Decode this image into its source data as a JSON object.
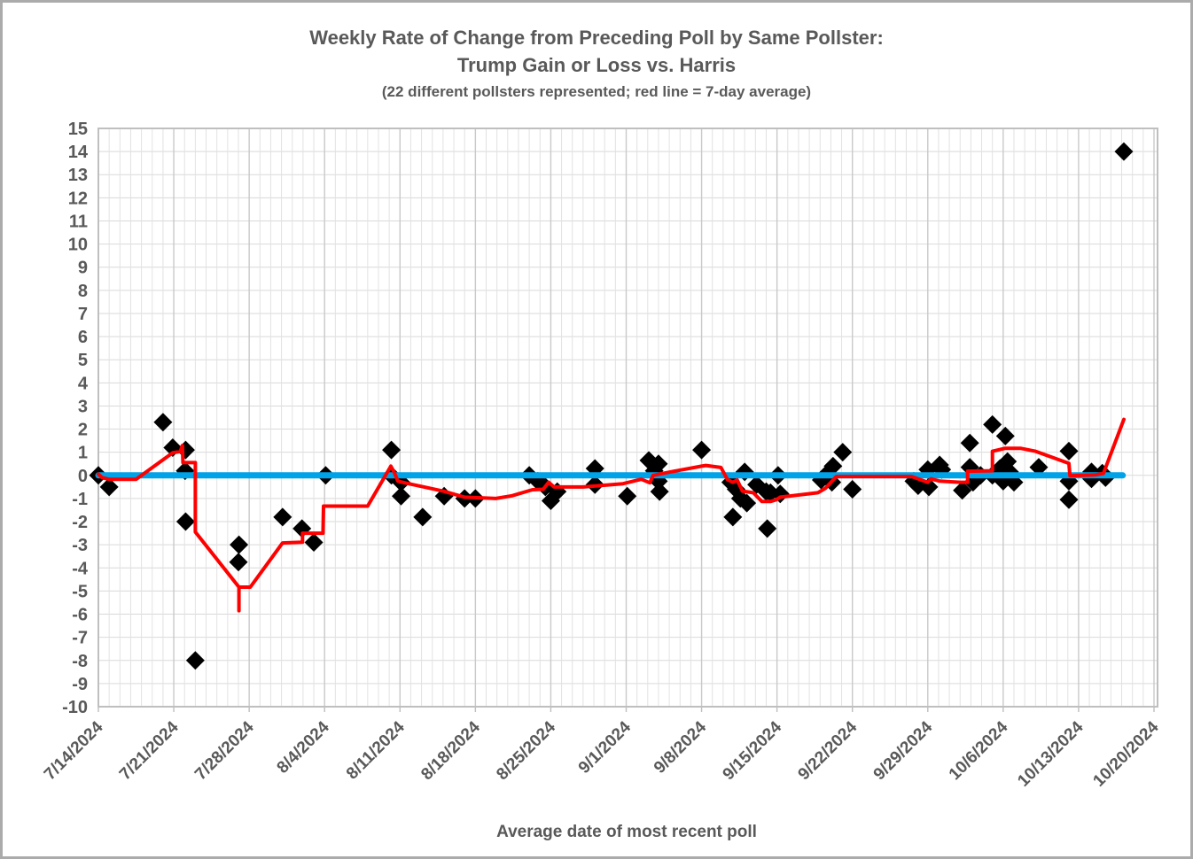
{
  "chart_data": {
    "type": "scatter",
    "title_line1": "Weekly Rate of Change from Preceding Poll by Same Pollster:",
    "title_line2": "Trump Gain or Loss vs. Harris",
    "subtitle": "(22 different pollsters represented; red line = 7-day average)",
    "xlabel": "Average date of most recent poll",
    "legend": {
      "red_line_meaning": "7-day average",
      "pollsters_represented": 22
    },
    "colors": {
      "scatter": "#000000",
      "zero_line": "#00a2e8",
      "avg_line": "#ff0000",
      "text": "#595959",
      "grid": "#d9d9d9",
      "grid_daily": "#e2e2e2",
      "grid_weekly": "#c9c9c9",
      "plot_border": "#bfbfbf"
    },
    "y_axis": {
      "min": -10,
      "max": 15,
      "step": 1,
      "tick_labels": [
        "15",
        "14",
        "13",
        "12",
        "11",
        "10",
        "9",
        "8",
        "7",
        "6",
        "5",
        "4",
        "3",
        "2",
        "1",
        "0",
        "-1",
        "-2",
        "-3",
        "-4",
        "-5",
        "-6",
        "-7",
        "-8",
        "-9",
        "-10"
      ]
    },
    "x_axis": {
      "tick_labels": [
        "7/14/2024",
        "7/21/2024",
        "7/28/2024",
        "8/4/2024",
        "8/11/2024",
        "8/18/2024",
        "8/25/2024",
        "9/1/2024",
        "9/8/2024",
        "9/15/2024",
        "9/22/2024",
        "9/29/2024",
        "10/6/2024",
        "10/13/2024",
        "10/20/2024"
      ],
      "days_per_tick": 7,
      "total_days_shown": 98.4
    },
    "zero_line_span_days": [
      0,
      95.1
    ],
    "scatter_points": [
      [
        0,
        0.0
      ],
      [
        1,
        -0.5
      ],
      [
        6,
        2.3
      ],
      [
        6.9,
        1.2
      ],
      [
        8.05,
        0.2
      ],
      [
        8.1,
        1.1
      ],
      [
        8.1,
        -2.0
      ],
      [
        9,
        -8.0
      ],
      [
        13.0,
        -3.75
      ],
      [
        13.05,
        -3.0
      ],
      [
        17.1,
        -1.8
      ],
      [
        18.9,
        -2.3
      ],
      [
        20,
        -2.9
      ],
      [
        21.1,
        0.0
      ],
      [
        27.2,
        1.1
      ],
      [
        27.2,
        0.0
      ],
      [
        28.1,
        -0.3
      ],
      [
        28.1,
        -0.9
      ],
      [
        30.1,
        -1.8
      ],
      [
        32.1,
        -0.9
      ],
      [
        34,
        -1.0
      ],
      [
        35,
        -1.0
      ],
      [
        40,
        0.0
      ],
      [
        40.8,
        -0.25
      ],
      [
        41.5,
        -0.5
      ],
      [
        42,
        -1.1
      ],
      [
        42.6,
        -0.7
      ],
      [
        46.1,
        0.3
      ],
      [
        46.1,
        -0.4
      ],
      [
        49.1,
        -0.9
      ],
      [
        51.1,
        0.65
      ],
      [
        51.6,
        0.2
      ],
      [
        52,
        0.5
      ],
      [
        52,
        -0.25
      ],
      [
        52.1,
        -0.7
      ],
      [
        56,
        1.1
      ],
      [
        58.7,
        -0.3
      ],
      [
        58.9,
        -1.8
      ],
      [
        59.2,
        -0.6
      ],
      [
        59.6,
        -1.0
      ],
      [
        60,
        0.15
      ],
      [
        60.2,
        -1.2
      ],
      [
        61.1,
        -0.4
      ],
      [
        62,
        -0.7
      ],
      [
        62.4,
        -0.75
      ],
      [
        62.1,
        -2.3
      ],
      [
        63.1,
        0.0
      ],
      [
        63.3,
        -0.8
      ],
      [
        67.1,
        -0.2
      ],
      [
        67.5,
        0.0
      ],
      [
        68.1,
        -0.3
      ],
      [
        68.2,
        0.4
      ],
      [
        69.1,
        1.0
      ],
      [
        70,
        -0.6
      ],
      [
        75.7,
        -0.25
      ],
      [
        76.1,
        -0.45
      ],
      [
        77,
        0.25
      ],
      [
        77.1,
        -0.5
      ],
      [
        78.1,
        0.45
      ],
      [
        78.3,
        0.25
      ],
      [
        80.2,
        -0.65
      ],
      [
        80.9,
        1.4
      ],
      [
        80.9,
        0.35
      ],
      [
        81.2,
        -0.3
      ],
      [
        81.9,
        0.0
      ],
      [
        83,
        2.2
      ],
      [
        83,
        0.0
      ],
      [
        83.7,
        0.3
      ],
      [
        84,
        -0.25
      ],
      [
        84.2,
        1.7
      ],
      [
        84.4,
        0.6
      ],
      [
        84.6,
        0.15
      ],
      [
        85,
        -0.3
      ],
      [
        87.3,
        0.35
      ],
      [
        90.1,
        1.05
      ],
      [
        90.1,
        -0.25
      ],
      [
        90.1,
        -1.05
      ],
      [
        92.2,
        0.15
      ],
      [
        92.2,
        -0.15
      ],
      [
        93.2,
        0.1
      ],
      [
        93.5,
        -0.1
      ],
      [
        95.2,
        14.0
      ]
    ],
    "avg_line_points": [
      [
        0,
        0.05
      ],
      [
        0.35,
        -0.1
      ],
      [
        1,
        -0.17
      ],
      [
        3.5,
        -0.17
      ],
      [
        6.9,
        0.98
      ],
      [
        7.6,
        1.03
      ],
      [
        7.8,
        1.29
      ],
      [
        7.85,
        0.55
      ],
      [
        9,
        0.55
      ],
      [
        9,
        -2.45
      ],
      [
        13.05,
        -4.83
      ],
      [
        13.05,
        -5.85
      ],
      [
        13.05,
        -4.83
      ],
      [
        14.1,
        -4.83
      ],
      [
        17.1,
        -2.92
      ],
      [
        18.95,
        -2.89
      ],
      [
        18.95,
        -2.5
      ],
      [
        20.85,
        -2.5
      ],
      [
        20.9,
        -1.33
      ],
      [
        25,
        -1.33
      ],
      [
        27.15,
        0.4
      ],
      [
        27.5,
        0.1
      ],
      [
        27.8,
        -0.25
      ],
      [
        28.8,
        -0.36
      ],
      [
        30.1,
        -0.49
      ],
      [
        32.1,
        -0.69
      ],
      [
        34,
        -0.94
      ],
      [
        36.9,
        -1.0
      ],
      [
        38.4,
        -0.88
      ],
      [
        40.3,
        -0.62
      ],
      [
        41.3,
        -0.6
      ],
      [
        41.8,
        -0.3
      ],
      [
        42.3,
        -0.5
      ],
      [
        45,
        -0.5
      ],
      [
        48.7,
        -0.36
      ],
      [
        50.4,
        -0.17
      ],
      [
        51.2,
        -0.32
      ],
      [
        51.5,
        0.0
      ],
      [
        53.1,
        0.15
      ],
      [
        56,
        0.4
      ],
      [
        56.4,
        0.43
      ],
      [
        57.8,
        0.34
      ],
      [
        58.4,
        -0.18
      ],
      [
        58.9,
        -0.3
      ],
      [
        59.3,
        -0.2
      ],
      [
        59.8,
        -0.68
      ],
      [
        60.8,
        -0.75
      ],
      [
        61.6,
        -1.13
      ],
      [
        62.4,
        -1.13
      ],
      [
        62.9,
        -1.06
      ],
      [
        63.3,
        -0.94
      ],
      [
        66.8,
        -0.75
      ],
      [
        67.5,
        -0.56
      ],
      [
        68.5,
        -0.05
      ],
      [
        75.5,
        -0.05
      ],
      [
        77,
        -0.3
      ],
      [
        77.3,
        -0.15
      ],
      [
        78.1,
        -0.25
      ],
      [
        80,
        -0.3
      ],
      [
        80.7,
        -0.3
      ],
      [
        80.7,
        0.18
      ],
      [
        83,
        0.2
      ],
      [
        83,
        1.04
      ],
      [
        84.2,
        1.17
      ],
      [
        85.6,
        1.17
      ],
      [
        87,
        1.04
      ],
      [
        90.1,
        0.52
      ],
      [
        90.2,
        -0.02
      ],
      [
        92.5,
        0.02
      ],
      [
        93.3,
        0.08
      ],
      [
        95.2,
        2.42
      ]
    ]
  }
}
